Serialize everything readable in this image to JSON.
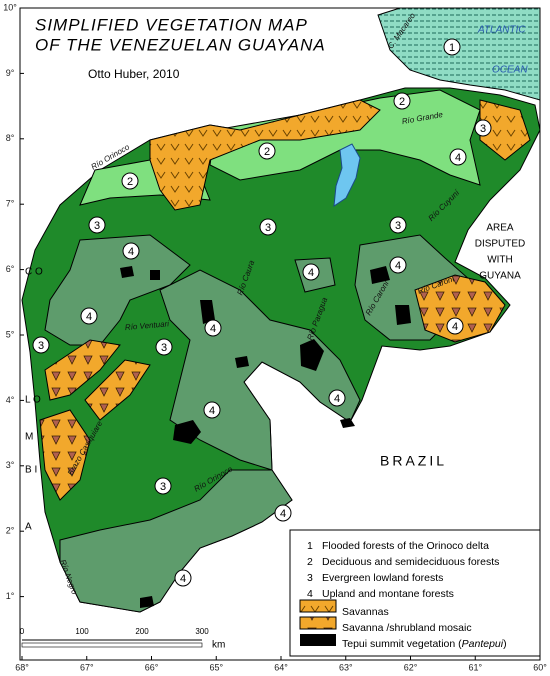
{
  "title": [
    "SIMPLIFIED VEGETATION MAP",
    "OF THE VENEZUELAN GUAYANA"
  ],
  "author": "Otto Huber, 2010",
  "ocean": [
    "ATLANTIC",
    "OCEAN"
  ],
  "disputed": [
    "AREA",
    "DISPUTED",
    "WITH",
    "GUYANA"
  ],
  "brazil": "BRAZIL",
  "colombia": [
    "C O",
    "L O",
    "M",
    "B I",
    "A"
  ],
  "rivers": [
    "Río Orinoco",
    "C. Macareo",
    "Río Grande",
    "Río Cuyuní",
    "Río Caura",
    "Río Paragua",
    "Río Caroni",
    "Río Caroni",
    "Río Ventuari",
    "Brazo Casiquiare",
    "Río Orinoco",
    "Río Negro"
  ],
  "zones": [
    "1",
    "2",
    "2",
    "2",
    "3",
    "4",
    "3",
    "3",
    "3",
    "4",
    "4",
    "4",
    "4",
    "4",
    "3",
    "3",
    "4",
    "4",
    "4",
    "3",
    "4",
    "4"
  ],
  "legend": [
    {
      "key": "1",
      "text": "Flooded  forests of the Orinoco delta"
    },
    {
      "key": "2",
      "text": "Deciduous  and semideciduous forests"
    },
    {
      "key": "3",
      "text": "Evergreen lowland forests"
    },
    {
      "key": "4",
      "text": "Upland  and montane forests"
    },
    {
      "text": "Savannas"
    },
    {
      "text": "Savanna /shrubland mosaic"
    },
    {
      "text": "Tepui summit vegetation (",
      "italic": "Pantepui",
      "end": ")"
    }
  ],
  "scale": {
    "ticks": [
      "0",
      "100",
      "200",
      "300"
    ],
    "unit": "km"
  },
  "lon_ticks": [
    "68°",
    "67°",
    "66°",
    "65°",
    "64°",
    "63°",
    "62°",
    "61°",
    "60°"
  ],
  "lat_ticks": [
    "10°",
    "9°",
    "8°",
    "7°",
    "6°",
    "5°",
    "4°",
    "3°",
    "2°",
    "1°"
  ]
}
